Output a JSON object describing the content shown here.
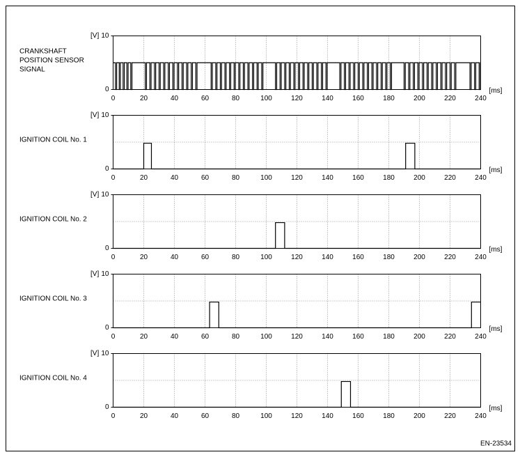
{
  "chart_data": [
    {
      "type": "line",
      "label_lines": [
        "CRANKSHAFT",
        "POSITION SENSOR",
        "SIGNAL"
      ],
      "ylabel": "[V]",
      "xlabel": "[ms]",
      "color": "#000000",
      "ylim": [
        0,
        10
      ],
      "yticks": [
        0,
        10
      ],
      "xlim": [
        0,
        240
      ],
      "xticks": [
        0,
        20,
        40,
        60,
        80,
        100,
        120,
        140,
        160,
        180,
        200,
        220,
        240
      ],
      "grid": true,
      "x": [
        0,
        1.5,
        1.5,
        2.3,
        2.3,
        4,
        4,
        4.8,
        4.8,
        6.5,
        6.5,
        7.3,
        7.3,
        9,
        9,
        9.8,
        9.8,
        11.5,
        11.5,
        12.3,
        12.3,
        21,
        21,
        21.8,
        21.8,
        24,
        24,
        24.8,
        24.8,
        27,
        27,
        27.8,
        27.8,
        30,
        30,
        30.8,
        30.8,
        33,
        33,
        33.8,
        33.8,
        36,
        36,
        36.8,
        36.8,
        39,
        39,
        39.8,
        39.8,
        42,
        42,
        42.8,
        42.8,
        45,
        45,
        45.8,
        45.8,
        48,
        48,
        48.8,
        48.8,
        51,
        51,
        51.8,
        51.8,
        54,
        54,
        54.8,
        54.8,
        64,
        64,
        64.8,
        64.8,
        67,
        67,
        67.8,
        67.8,
        70,
        70,
        70.8,
        70.8,
        73,
        73,
        73.8,
        73.8,
        76,
        76,
        76.8,
        76.8,
        79,
        79,
        79.8,
        79.8,
        82,
        82,
        82.8,
        82.8,
        85,
        85,
        85.8,
        85.8,
        88,
        88,
        88.8,
        88.8,
        91,
        91,
        91.8,
        91.8,
        94,
        94,
        94.8,
        94.8,
        97,
        97,
        97.8,
        97.8,
        106,
        106,
        106.8,
        106.8,
        109,
        109,
        109.8,
        109.8,
        112,
        112,
        112.8,
        112.8,
        115,
        115,
        115.8,
        115.8,
        118,
        118,
        118.8,
        118.8,
        121,
        121,
        121.8,
        121.8,
        124,
        124,
        124.8,
        124.8,
        127,
        127,
        127.8,
        127.8,
        130,
        130,
        130.8,
        130.8,
        133,
        133,
        133.8,
        133.8,
        136,
        136,
        136.8,
        136.8,
        139,
        139,
        139.8,
        139.8,
        148,
        148,
        148.8,
        148.8,
        151,
        151,
        151.8,
        151.8,
        154,
        154,
        154.8,
        154.8,
        157,
        157,
        157.8,
        157.8,
        160,
        160,
        160.8,
        160.8,
        163,
        163,
        163.8,
        163.8,
        166,
        166,
        166.8,
        166.8,
        169,
        169,
        169.8,
        169.8,
        172,
        172,
        172.8,
        172.8,
        175,
        175,
        175.8,
        175.8,
        178,
        178,
        178.8,
        178.8,
        181,
        181,
        181.8,
        181.8,
        190,
        190,
        190.8,
        190.8,
        193,
        193,
        193.8,
        193.8,
        196,
        196,
        196.8,
        196.8,
        199,
        199,
        199.8,
        199.8,
        202,
        202,
        202.8,
        202.8,
        205,
        205,
        205.8,
        205.8,
        208,
        208,
        208.8,
        208.8,
        211,
        211,
        211.8,
        211.8,
        214,
        214,
        214.8,
        214.8,
        217,
        217,
        217.8,
        217.8,
        220,
        220,
        220.8,
        220.8,
        223,
        223,
        223.8,
        223.8,
        233,
        233,
        233.8,
        233.8,
        236,
        236,
        236.8,
        236.8,
        239,
        239,
        239.8,
        239.8,
        240
      ],
      "values": [
        5,
        5,
        0,
        0,
        5,
        5,
        0,
        0,
        5,
        5,
        0,
        0,
        5,
        5,
        0,
        0,
        5,
        5,
        0,
        0,
        5,
        5,
        0,
        0,
        5,
        5,
        0,
        0,
        5,
        5,
        0,
        0,
        5,
        5,
        0,
        0,
        5,
        5,
        0,
        0,
        5,
        5,
        0,
        0,
        5,
        5,
        0,
        0,
        5,
        5,
        0,
        0,
        5,
        5,
        0,
        0,
        5,
        5,
        0,
        0,
        5,
        5,
        0,
        0,
        5,
        5,
        0,
        0,
        5,
        5,
        0,
        0,
        5,
        5,
        0,
        0,
        5,
        5,
        0,
        0,
        5,
        5,
        0,
        0,
        5,
        5,
        0,
        0,
        5,
        5,
        0,
        0,
        5,
        5,
        0,
        0,
        5,
        5,
        0,
        0,
        5,
        5,
        0,
        0,
        5,
        5,
        0,
        0,
        5,
        5,
        0,
        0,
        5,
        5,
        0,
        0,
        5,
        5,
        0,
        0,
        5,
        5,
        0,
        0,
        5,
        5,
        0,
        0,
        5,
        5,
        0,
        0,
        5,
        5,
        0,
        0,
        5,
        5,
        0,
        0,
        5,
        5,
        0,
        0,
        5,
        5,
        0,
        0,
        5,
        5,
        0,
        0,
        5,
        5,
        0,
        0,
        5,
        5,
        0,
        0,
        5,
        5,
        0,
        0,
        5,
        5,
        0,
        0,
        5,
        5,
        0,
        0,
        5,
        5,
        0,
        0,
        5,
        5,
        0,
        0,
        5,
        5,
        0,
        0,
        5,
        5,
        0,
        0,
        5,
        5,
        0,
        0,
        5,
        5,
        0,
        0,
        5,
        5,
        0,
        0,
        5,
        5,
        0,
        0,
        5,
        5,
        0,
        0,
        5,
        5,
        0,
        0,
        5,
        5,
        0,
        0,
        5,
        5,
        0,
        0,
        5,
        5,
        0,
        0,
        5,
        5,
        0,
        0,
        5,
        5,
        0,
        0,
        5,
        5,
        0,
        0,
        5,
        5,
        0,
        0,
        5,
        5,
        0,
        0,
        5,
        5,
        0,
        0,
        5,
        5,
        0,
        0,
        5,
        5,
        0,
        0,
        5,
        5,
        0,
        0,
        5,
        5,
        0,
        0,
        5,
        5,
        0,
        0,
        5,
        5,
        0,
        0,
        5,
        5
      ]
    },
    {
      "type": "line",
      "label_lines": [
        "IGNITION COIL No. 1"
      ],
      "ylabel": "[V]",
      "xlabel": "[ms]",
      "color": "#000000",
      "ylim": [
        0,
        10
      ],
      "yticks": [
        0,
        10
      ],
      "xlim": [
        0,
        240
      ],
      "xticks": [
        0,
        20,
        40,
        60,
        80,
        100,
        120,
        140,
        160,
        180,
        200,
        220,
        240
      ],
      "grid": true,
      "x": [
        0,
        20,
        20,
        25,
        25,
        191,
        191,
        197,
        197,
        240
      ],
      "values": [
        0,
        0,
        4.8,
        4.8,
        0,
        0,
        4.8,
        4.8,
        0,
        0
      ]
    },
    {
      "type": "line",
      "label_lines": [
        "IGNITION COIL No. 2"
      ],
      "ylabel": "[V]",
      "xlabel": "[ms]",
      "color": "#000000",
      "ylim": [
        0,
        10
      ],
      "yticks": [
        0,
        10
      ],
      "xlim": [
        0,
        240
      ],
      "xticks": [
        0,
        20,
        40,
        60,
        80,
        100,
        120,
        140,
        160,
        180,
        200,
        220,
        240
      ],
      "grid": true,
      "x": [
        0,
        106,
        106,
        112,
        112,
        240
      ],
      "values": [
        0,
        0,
        4.8,
        4.8,
        0,
        0
      ]
    },
    {
      "type": "line",
      "label_lines": [
        "IGNITION COIL No. 3"
      ],
      "ylabel": "[V]",
      "xlabel": "[ms]",
      "color": "#000000",
      "ylim": [
        0,
        10
      ],
      "yticks": [
        0,
        10
      ],
      "xlim": [
        0,
        240
      ],
      "xticks": [
        0,
        20,
        40,
        60,
        80,
        100,
        120,
        140,
        160,
        180,
        200,
        220,
        240
      ],
      "grid": true,
      "x": [
        0,
        63,
        63,
        69,
        69,
        234,
        234,
        240
      ],
      "values": [
        0,
        0,
        4.8,
        4.8,
        0,
        0,
        4.8,
        4.8
      ]
    },
    {
      "type": "line",
      "label_lines": [
        "IGNITION COIL No. 4"
      ],
      "ylabel": "[V]",
      "xlabel": "[ms]",
      "color": "#000000",
      "ylim": [
        0,
        10
      ],
      "yticks": [
        0,
        10
      ],
      "xlim": [
        0,
        240
      ],
      "xticks": [
        0,
        20,
        40,
        60,
        80,
        100,
        120,
        140,
        160,
        180,
        200,
        220,
        240
      ],
      "grid": true,
      "x": [
        0,
        149,
        149,
        155,
        155,
        240
      ],
      "values": [
        0,
        0,
        4.8,
        4.8,
        0,
        0
      ]
    }
  ],
  "figure_code": "EN-23534"
}
